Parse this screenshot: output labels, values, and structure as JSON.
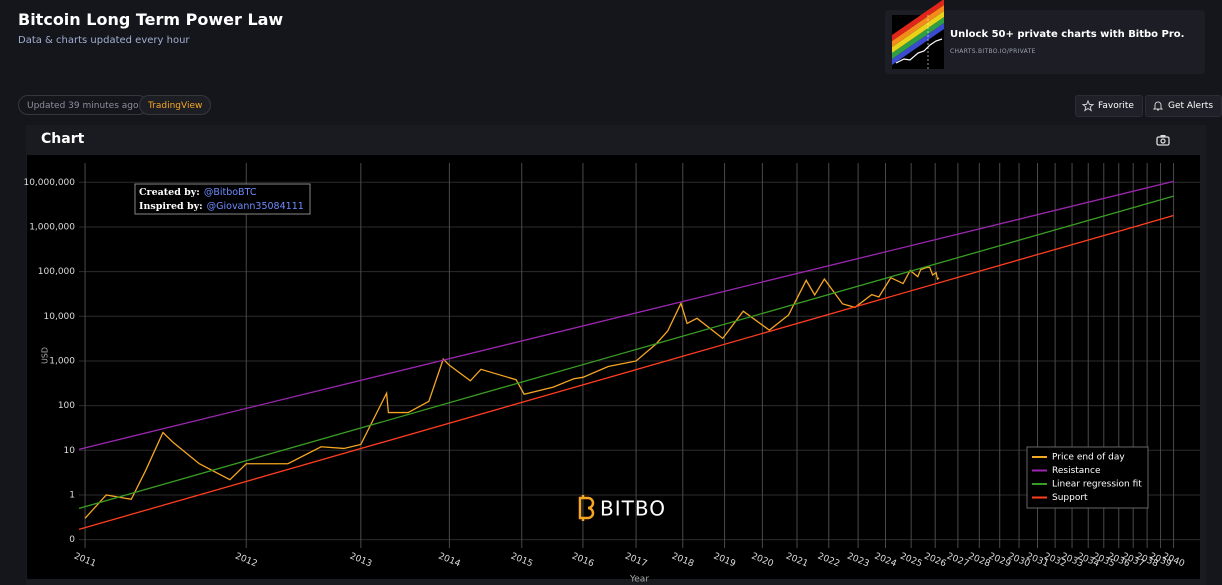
{
  "header": {
    "title": "Bitcoin Long Term Power Law",
    "subtitle": "Data & charts updated every hour"
  },
  "promo": {
    "title": "Unlock 50+ private charts with Bitbo Pro.",
    "url": "CHARTS.BITBO.IO/PRIVATE"
  },
  "toolbar": {
    "updated": "Updated 39 minutes ago",
    "source": "TradingView",
    "favorite": "Favorite",
    "alerts": "Get Alerts"
  },
  "panel_title": "Chart",
  "chart_data": {
    "type": "line",
    "x_label": "Year",
    "y_label": "USD",
    "xscale": "log",
    "yscale": "log",
    "grid": true,
    "legend": "lower right",
    "annotation": {
      "created_label": "Created by:",
      "created_by": "@BitboBTC",
      "inspired_label": "Inspired by:",
      "inspired_by": "@Giovann35084111"
    },
    "watermark": "BITBO",
    "xlim": [
      717,
      12100
    ],
    "ylim": [
      0.065,
      27000000
    ],
    "xticks": [
      {
        "value": 728,
        "label": "2011"
      },
      {
        "value": 1093,
        "label": "2012"
      },
      {
        "value": 1459,
        "label": "2013"
      },
      {
        "value": 1824,
        "label": "2014"
      },
      {
        "value": 2189,
        "label": "2015"
      },
      {
        "value": 2554,
        "label": "2016"
      },
      {
        "value": 2920,
        "label": "2017"
      },
      {
        "value": 3285,
        "label": "2018"
      },
      {
        "value": 3650,
        "label": "2019"
      },
      {
        "value": 4015,
        "label": "2020"
      },
      {
        "value": 4381,
        "label": "2021"
      },
      {
        "value": 4746,
        "label": "2022"
      },
      {
        "value": 5111,
        "label": "2023"
      },
      {
        "value": 5476,
        "label": "2024"
      },
      {
        "value": 5842,
        "label": "2025"
      },
      {
        "value": 6207,
        "label": "2026"
      },
      {
        "value": 6572,
        "label": "2027"
      },
      {
        "value": 6937,
        "label": "2028"
      },
      {
        "value": 7303,
        "label": "2029"
      },
      {
        "value": 7668,
        "label": "2030"
      },
      {
        "value": 8033,
        "label": "2031"
      },
      {
        "value": 8398,
        "label": "2032"
      },
      {
        "value": 8764,
        "label": "2033"
      },
      {
        "value": 9129,
        "label": "2034"
      },
      {
        "value": 9494,
        "label": "2035"
      },
      {
        "value": 9859,
        "label": "2036"
      },
      {
        "value": 10225,
        "label": "2037"
      },
      {
        "value": 10590,
        "label": "2038"
      },
      {
        "value": 10955,
        "label": "2039"
      },
      {
        "value": 11320,
        "label": "2040"
      }
    ],
    "yticks": [
      {
        "value": 0.1,
        "label": "0"
      },
      1,
      10,
      100,
      {
        "value": 1000,
        "label": "1,000"
      },
      {
        "value": 10000,
        "label": "10,000"
      },
      {
        "value": 100000,
        "label": "100,000"
      },
      {
        "value": 1000000,
        "label": "1,000,000"
      },
      {
        "value": 10000000,
        "label": "10,000,000"
      }
    ],
    "series": [
      {
        "name": "Price end of day",
        "color": "#f5a623",
        "x": [
          728,
          768,
          818,
          848,
          886,
          909,
          971,
          1049,
          1093,
          1214,
          1320,
          1398,
          1459,
          1557,
          1564,
          1644,
          1732,
          1796,
          1824,
          1923,
          1975,
          2158,
          2202,
          2370,
          2496,
          2554,
          2722,
          2920,
          3071,
          3163,
          3270,
          3321,
          3405,
          3633,
          3826,
          4086,
          4289,
          4484,
          4581,
          4694,
          4914,
          5070,
          5290,
          5385,
          5550,
          5725,
          5827,
          5940,
          5984,
          6068,
          6121,
          6167,
          6221,
          6243,
          6267
        ],
        "values": [
          0.3,
          1.0,
          0.8,
          3.5,
          25,
          15,
          5,
          2.2,
          5,
          5,
          12,
          11,
          13.5,
          190,
          70,
          70,
          125,
          1100,
          800,
          360,
          650,
          380,
          180,
          260,
          400,
          430,
          750,
          1000,
          2400,
          4700,
          19500,
          6900,
          9000,
          3200,
          13000,
          4900,
          10700,
          64000,
          30000,
          68000,
          19000,
          15800,
          30500,
          27000,
          73000,
          54000,
          106000,
          77000,
          111000,
          123000,
          125000,
          84000,
          95000,
          68000,
          72000
        ]
      },
      {
        "name": "Resistance",
        "color": "#9b27b0",
        "x": [
          717,
          11320
        ],
        "values": [
          10.5,
          10500000
        ]
      },
      {
        "name": "Linear regression fit",
        "color": "#3a9d23",
        "x": [
          717,
          11320
        ],
        "values": [
          0.5,
          4900000
        ]
      },
      {
        "name": "Support",
        "color": "#ff3d1f",
        "x": [
          717,
          11320
        ],
        "values": [
          0.17,
          1800000
        ]
      }
    ]
  }
}
